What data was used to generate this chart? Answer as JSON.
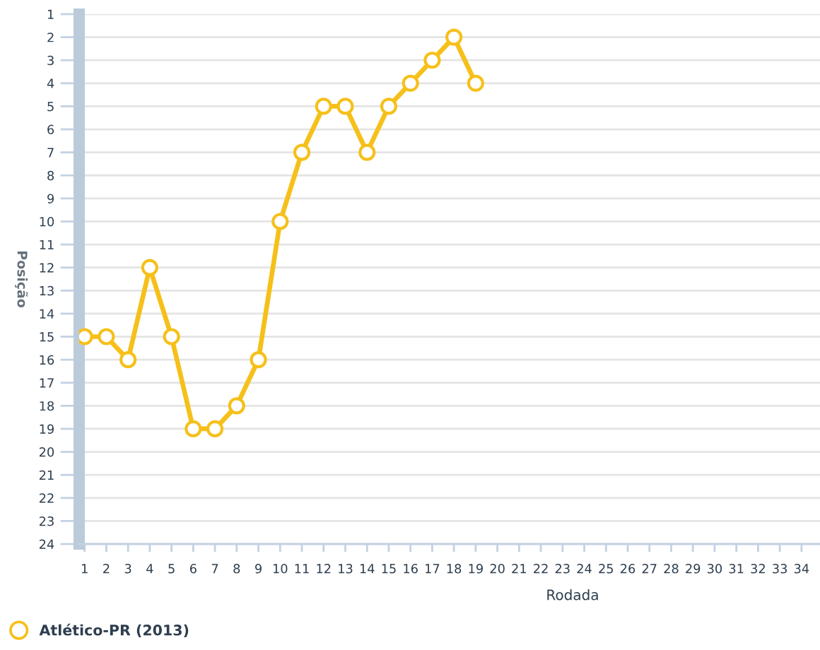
{
  "chart_data": {
    "type": "line",
    "xlabel": "Rodada",
    "ylabel": "Posição",
    "x": [
      1,
      2,
      3,
      4,
      5,
      6,
      7,
      8,
      9,
      10,
      11,
      12,
      13,
      14,
      15,
      16,
      17,
      18,
      19
    ],
    "series": [
      {
        "name": "Atlético-PR (2013)",
        "color": "#f6c01a",
        "values": [
          15,
          15,
          16,
          12,
          15,
          19,
          19,
          18,
          16,
          10,
          7,
          5,
          5,
          7,
          5,
          4,
          3,
          2,
          4
        ]
      }
    ],
    "xlim": [
      0.75,
      34.85
    ],
    "xticks": [
      1,
      2,
      3,
      4,
      5,
      6,
      7,
      8,
      9,
      10,
      11,
      12,
      13,
      14,
      15,
      16,
      17,
      18,
      19,
      20,
      21,
      22,
      23,
      24,
      25,
      26,
      27,
      28,
      29,
      30,
      31,
      32,
      33,
      34
    ],
    "ylim": [
      24,
      1
    ],
    "yticks": [
      1,
      2,
      3,
      4,
      5,
      6,
      7,
      8,
      9,
      10,
      11,
      12,
      13,
      14,
      15,
      16,
      17,
      18,
      19,
      20,
      21,
      22,
      23,
      24
    ],
    "grid": "y",
    "legend": "bottom left",
    "marker": "circle",
    "line_style": "solid"
  }
}
